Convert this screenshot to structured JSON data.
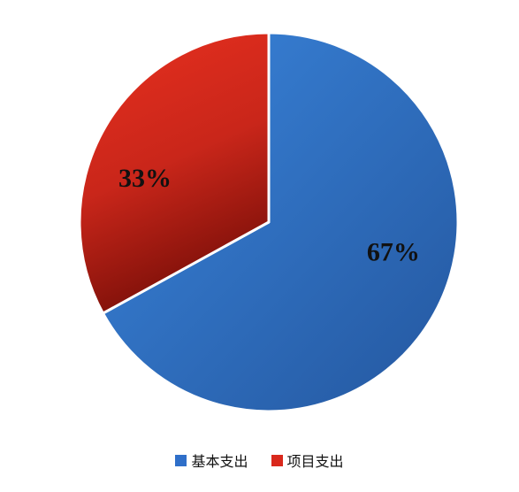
{
  "chart_data": {
    "type": "pie",
    "categories": [
      "基本支出",
      "项目支出"
    ],
    "values": [
      67,
      33
    ],
    "data_labels": [
      "67%",
      "33%"
    ],
    "colors": [
      "#2f6fc9",
      "#d9281c"
    ],
    "legend_position": "bottom",
    "title": ""
  }
}
